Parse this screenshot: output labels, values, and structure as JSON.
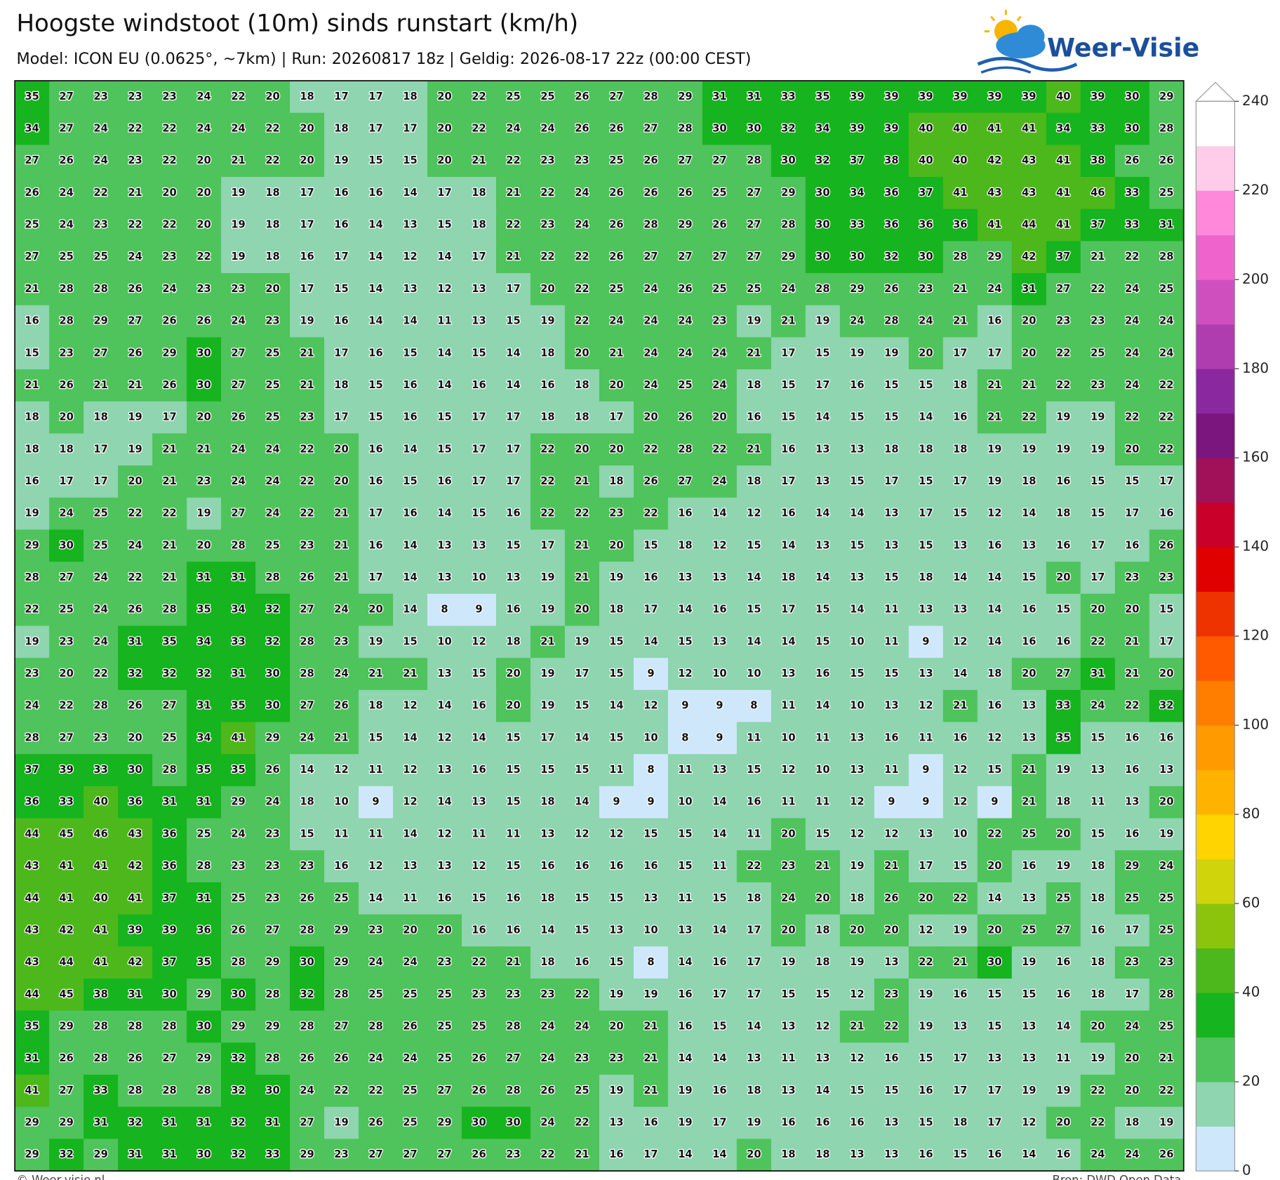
{
  "chart_data": {
    "type": "heatmap",
    "title": "Hoogste windstoot (10m) sinds runstart (km/h)",
    "subtitle": "Model: ICON EU (0.0625°, ~7km)  |  Run: 20260817 18z  |  Geldig: 2026-08-17 22z (00:00 CEST)",
    "logo": "Weer-Visie",
    "footer_left": "© Weer-visie.nl",
    "footer_right": "Bron: DWD Open Data",
    "values": [
      [
        35,
        27,
        23,
        23,
        23,
        24,
        22,
        20,
        18,
        17,
        17,
        18,
        20,
        22,
        25,
        25,
        26,
        27,
        28,
        29,
        31,
        31,
        33,
        35,
        39,
        39,
        39,
        39,
        39,
        39,
        40,
        39,
        30,
        29
      ],
      [
        34,
        27,
        24,
        22,
        22,
        24,
        24,
        22,
        20,
        18,
        17,
        17,
        20,
        22,
        24,
        24,
        26,
        26,
        27,
        28,
        30,
        30,
        32,
        34,
        39,
        39,
        40,
        40,
        41,
        41,
        34,
        33,
        30,
        28
      ],
      [
        27,
        26,
        24,
        23,
        22,
        20,
        21,
        22,
        20,
        19,
        15,
        15,
        20,
        21,
        22,
        23,
        23,
        25,
        26,
        27,
        27,
        28,
        30,
        32,
        37,
        38,
        40,
        40,
        42,
        43,
        41,
        38,
        26,
        26
      ],
      [
        26,
        24,
        22,
        21,
        20,
        20,
        19,
        18,
        17,
        16,
        16,
        14,
        17,
        18,
        21,
        22,
        24,
        26,
        26,
        26,
        25,
        27,
        29,
        30,
        34,
        36,
        37,
        41,
        43,
        43,
        41,
        46,
        33,
        25
      ],
      [
        25,
        24,
        23,
        22,
        22,
        20,
        19,
        18,
        17,
        16,
        14,
        13,
        15,
        18,
        22,
        23,
        24,
        26,
        28,
        29,
        26,
        27,
        28,
        30,
        33,
        36,
        36,
        36,
        41,
        44,
        41,
        37,
        33,
        31
      ],
      [
        27,
        25,
        25,
        24,
        23,
        22,
        19,
        18,
        16,
        17,
        14,
        12,
        14,
        17,
        21,
        22,
        22,
        26,
        27,
        27,
        27,
        27,
        29,
        30,
        30,
        32,
        30,
        28,
        29,
        42,
        37,
        21,
        22,
        28
      ],
      [
        21,
        28,
        28,
        26,
        24,
        23,
        23,
        20,
        17,
        15,
        14,
        13,
        12,
        13,
        17,
        20,
        22,
        25,
        24,
        26,
        25,
        25,
        24,
        28,
        29,
        26,
        23,
        21,
        24,
        31,
        27,
        22,
        24,
        25
      ],
      [
        16,
        28,
        29,
        27,
        26,
        26,
        24,
        23,
        19,
        16,
        14,
        14,
        11,
        13,
        15,
        19,
        22,
        24,
        24,
        24,
        23,
        19,
        21,
        19,
        24,
        28,
        24,
        21,
        16,
        20,
        23,
        23,
        24,
        24
      ],
      [
        15,
        23,
        27,
        26,
        29,
        30,
        27,
        25,
        21,
        17,
        16,
        15,
        14,
        15,
        14,
        18,
        20,
        21,
        24,
        24,
        24,
        21,
        17,
        15,
        19,
        19,
        20,
        17,
        17,
        20,
        22,
        25,
        24,
        24
      ],
      [
        21,
        26,
        21,
        21,
        26,
        30,
        27,
        25,
        21,
        18,
        15,
        16,
        14,
        16,
        14,
        16,
        18,
        20,
        24,
        25,
        24,
        18,
        15,
        17,
        16,
        15,
        15,
        18,
        21,
        21,
        22,
        23,
        24,
        22
      ],
      [
        18,
        20,
        18,
        19,
        17,
        20,
        26,
        25,
        23,
        17,
        15,
        16,
        15,
        17,
        17,
        18,
        18,
        17,
        20,
        26,
        20,
        16,
        15,
        14,
        15,
        15,
        14,
        16,
        21,
        22,
        19,
        19,
        22,
        22
      ],
      [
        18,
        18,
        17,
        19,
        21,
        21,
        24,
        24,
        22,
        20,
        16,
        14,
        15,
        17,
        17,
        22,
        20,
        20,
        22,
        28,
        22,
        21,
        16,
        13,
        13,
        18,
        18,
        18,
        19,
        19,
        19,
        19,
        20,
        22
      ],
      [
        16,
        17,
        17,
        20,
        21,
        23,
        24,
        24,
        22,
        20,
        16,
        15,
        16,
        17,
        17,
        22,
        21,
        18,
        26,
        27,
        24,
        18,
        17,
        13,
        15,
        17,
        15,
        17,
        19,
        18,
        16,
        15,
        15,
        17
      ],
      [
        19,
        24,
        25,
        22,
        22,
        19,
        27,
        24,
        22,
        21,
        17,
        16,
        14,
        15,
        16,
        22,
        22,
        23,
        22,
        16,
        14,
        12,
        16,
        14,
        14,
        13,
        17,
        15,
        12,
        14,
        18,
        15,
        17,
        16
      ],
      [
        29,
        30,
        25,
        24,
        21,
        20,
        28,
        25,
        23,
        21,
        16,
        14,
        13,
        13,
        15,
        17,
        21,
        20,
        15,
        18,
        12,
        15,
        14,
        13,
        15,
        13,
        15,
        13,
        16,
        13,
        16,
        17,
        16,
        26
      ],
      [
        28,
        27,
        24,
        22,
        21,
        31,
        31,
        28,
        26,
        21,
        17,
        14,
        13,
        10,
        13,
        19,
        21,
        19,
        16,
        13,
        13,
        14,
        18,
        14,
        13,
        15,
        18,
        14,
        14,
        15,
        20,
        17,
        23,
        23
      ],
      [
        22,
        25,
        24,
        26,
        28,
        35,
        34,
        32,
        27,
        24,
        20,
        14,
        8,
        9,
        16,
        19,
        20,
        18,
        17,
        14,
        16,
        15,
        17,
        15,
        14,
        11,
        13,
        13,
        14,
        16,
        15,
        20,
        20,
        15
      ],
      [
        19,
        23,
        24,
        31,
        35,
        34,
        33,
        32,
        28,
        23,
        19,
        15,
        10,
        12,
        18,
        21,
        19,
        15,
        14,
        15,
        13,
        14,
        14,
        15,
        10,
        11,
        9,
        12,
        14,
        16,
        16,
        22,
        21,
        17
      ],
      [
        23,
        20,
        22,
        32,
        32,
        32,
        31,
        30,
        28,
        24,
        21,
        21,
        13,
        15,
        20,
        19,
        17,
        15,
        9,
        12,
        10,
        10,
        13,
        16,
        15,
        15,
        13,
        14,
        18,
        20,
        27,
        31,
        21,
        20
      ],
      [
        24,
        22,
        28,
        26,
        27,
        31,
        35,
        30,
        27,
        26,
        18,
        12,
        14,
        16,
        20,
        19,
        15,
        14,
        12,
        9,
        9,
        8,
        11,
        14,
        10,
        13,
        12,
        21,
        16,
        13,
        33,
        24,
        22,
        32
      ],
      [
        28,
        27,
        23,
        20,
        25,
        34,
        41,
        29,
        24,
        21,
        15,
        14,
        12,
        14,
        15,
        17,
        14,
        15,
        10,
        8,
        9,
        11,
        10,
        11,
        13,
        16,
        11,
        16,
        12,
        13,
        35,
        15,
        16,
        16
      ],
      [
        37,
        39,
        33,
        30,
        28,
        35,
        35,
        26,
        14,
        12,
        11,
        12,
        13,
        16,
        15,
        15,
        15,
        11,
        8,
        11,
        13,
        15,
        12,
        10,
        13,
        11,
        9,
        12,
        15,
        21,
        19,
        13,
        16,
        13
      ],
      [
        36,
        33,
        40,
        36,
        31,
        31,
        29,
        24,
        18,
        10,
        9,
        12,
        14,
        13,
        15,
        18,
        14,
        9,
        9,
        10,
        14,
        16,
        11,
        11,
        12,
        9,
        9,
        12,
        9,
        21,
        18,
        11,
        13,
        20
      ],
      [
        44,
        45,
        46,
        43,
        36,
        25,
        24,
        23,
        15,
        11,
        11,
        14,
        12,
        11,
        11,
        13,
        12,
        12,
        15,
        15,
        14,
        11,
        20,
        15,
        12,
        12,
        13,
        10,
        22,
        25,
        20,
        15,
        16,
        19
      ],
      [
        43,
        41,
        41,
        42,
        36,
        28,
        23,
        23,
        23,
        16,
        12,
        13,
        13,
        12,
        15,
        16,
        16,
        16,
        16,
        15,
        11,
        22,
        23,
        21,
        19,
        21,
        17,
        15,
        20,
        16,
        19,
        18,
        29,
        24
      ],
      [
        44,
        41,
        40,
        41,
        37,
        31,
        25,
        23,
        26,
        25,
        14,
        11,
        16,
        15,
        16,
        18,
        15,
        15,
        13,
        11,
        15,
        18,
        24,
        20,
        18,
        26,
        20,
        22,
        14,
        13,
        25,
        18,
        25,
        25
      ],
      [
        43,
        42,
        41,
        39,
        39,
        36,
        26,
        27,
        28,
        29,
        23,
        20,
        20,
        16,
        16,
        14,
        15,
        13,
        10,
        13,
        14,
        17,
        20,
        18,
        20,
        20,
        12,
        19,
        20,
        25,
        27,
        16,
        17,
        25
      ],
      [
        43,
        44,
        41,
        42,
        37,
        35,
        28,
        29,
        30,
        29,
        24,
        24,
        23,
        22,
        21,
        18,
        16,
        15,
        8,
        14,
        16,
        17,
        19,
        18,
        19,
        13,
        22,
        21,
        30,
        19,
        16,
        18,
        23,
        23
      ],
      [
        44,
        45,
        38,
        31,
        30,
        29,
        30,
        28,
        32,
        28,
        25,
        25,
        25,
        23,
        23,
        23,
        22,
        19,
        19,
        16,
        17,
        17,
        15,
        15,
        12,
        23,
        19,
        16,
        15,
        15,
        16,
        18,
        17,
        28
      ],
      [
        35,
        29,
        28,
        28,
        28,
        30,
        29,
        29,
        28,
        27,
        28,
        26,
        25,
        25,
        28,
        24,
        24,
        20,
        21,
        16,
        15,
        14,
        13,
        12,
        21,
        22,
        19,
        13,
        15,
        13,
        14,
        20,
        24,
        25
      ],
      [
        31,
        26,
        28,
        26,
        27,
        29,
        32,
        28,
        26,
        26,
        24,
        24,
        25,
        26,
        27,
        24,
        23,
        23,
        21,
        14,
        14,
        13,
        11,
        13,
        12,
        16,
        15,
        17,
        13,
        13,
        11,
        19,
        20,
        21
      ],
      [
        41,
        27,
        33,
        28,
        28,
        28,
        32,
        30,
        24,
        22,
        22,
        25,
        27,
        26,
        28,
        26,
        25,
        19,
        21,
        19,
        16,
        18,
        13,
        14,
        15,
        15,
        16,
        17,
        17,
        19,
        19,
        22,
        20,
        22
      ],
      [
        29,
        29,
        31,
        32,
        31,
        31,
        32,
        31,
        27,
        19,
        26,
        25,
        29,
        30,
        30,
        24,
        22,
        13,
        16,
        19,
        17,
        19,
        16,
        16,
        16,
        13,
        15,
        18,
        17,
        12,
        20,
        22,
        18,
        19
      ],
      [
        29,
        32,
        29,
        31,
        31,
        30,
        32,
        33,
        29,
        23,
        27,
        27,
        27,
        26,
        23,
        22,
        21,
        16,
        17,
        14,
        14,
        20,
        18,
        18,
        13,
        13,
        16,
        15,
        16,
        14,
        16,
        24,
        24,
        26
      ]
    ],
    "colorbar": {
      "lim": [
        0,
        240
      ],
      "ticks": [
        0,
        20,
        40,
        60,
        80,
        100,
        120,
        140,
        160,
        180,
        200,
        220,
        240
      ],
      "colors": [
        "#cfe7fb",
        "#8ed5b0",
        "#4fc35c",
        "#16b41e",
        "#4db81b",
        "#8cc40c",
        "#d0d40b",
        "#ffd400",
        "#ffb300",
        "#ff9a00",
        "#ff7e00",
        "#ff5a00",
        "#ee3300",
        "#e00000",
        "#c8002a",
        "#a0115a",
        "#7b167e",
        "#8a28a0",
        "#b03db0",
        "#d04fbf",
        "#ef63cc",
        "#ff88da",
        "#ffcdea",
        "#ffffff"
      ]
    }
  }
}
